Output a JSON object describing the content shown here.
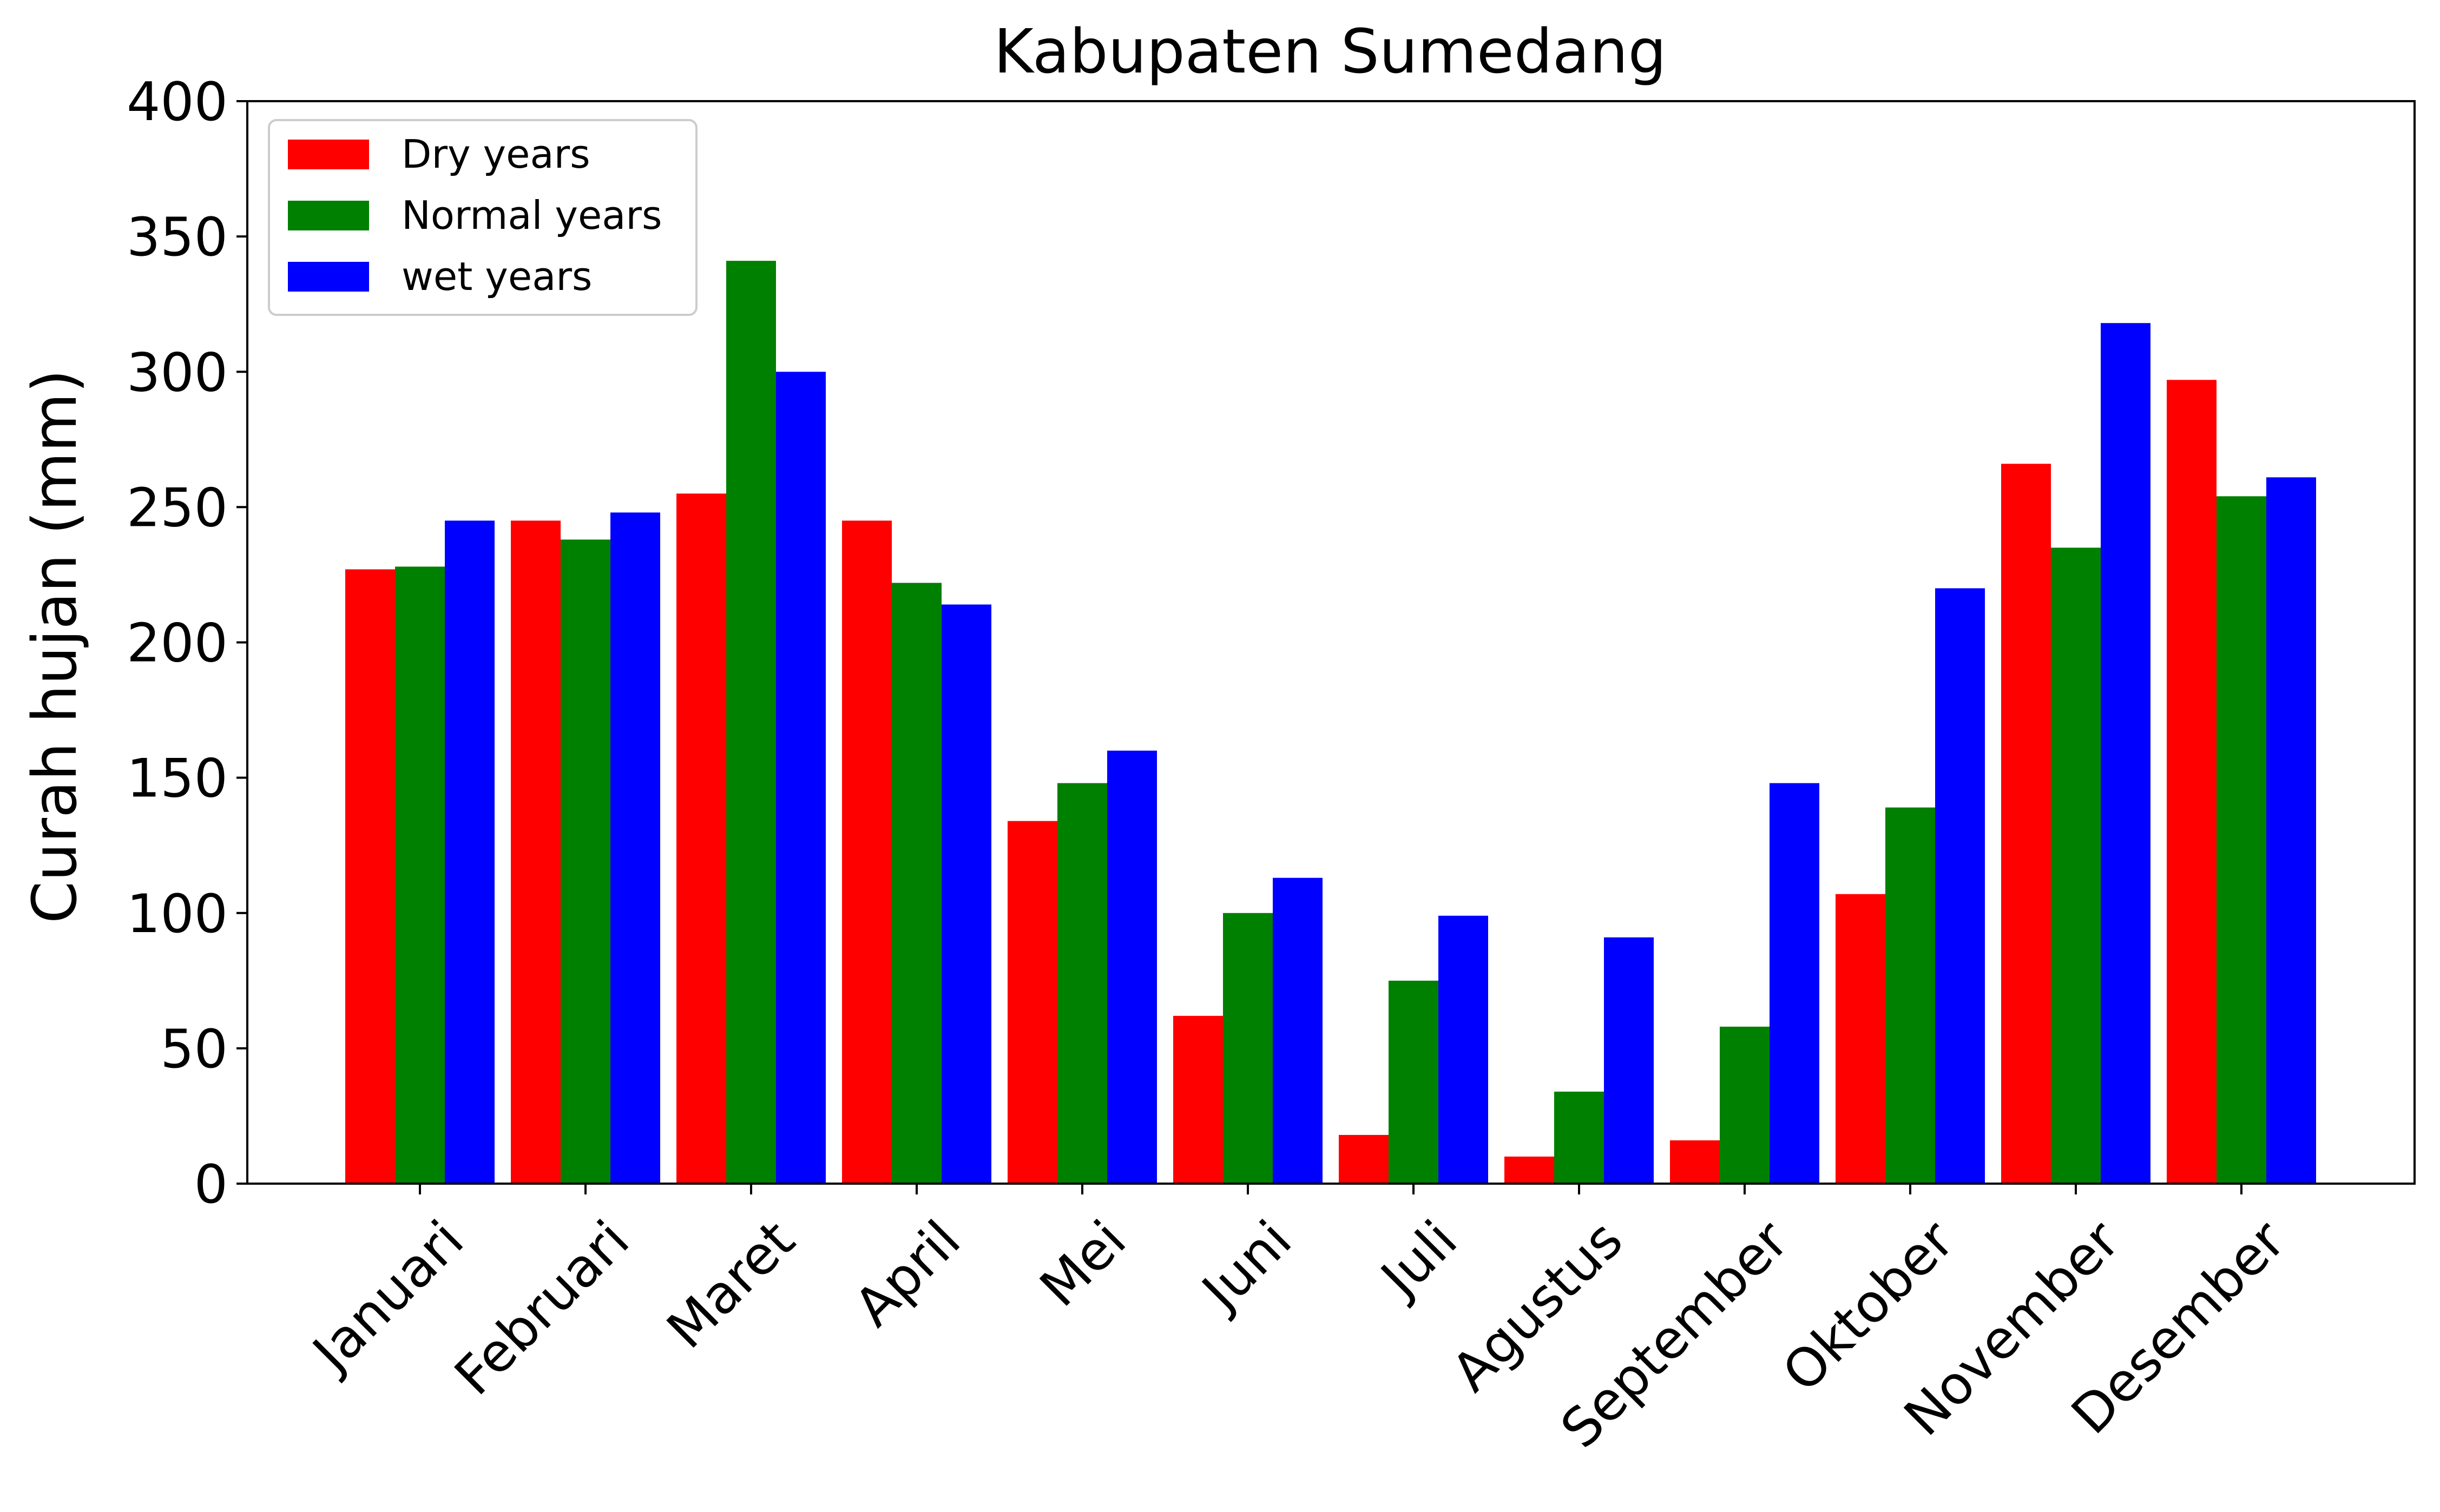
{
  "chart_data": {
    "type": "bar",
    "title": "Kabupaten Sumedang",
    "xlabel": "",
    "ylabel": "Curah hujan (mm)",
    "ylim": [
      0,
      400
    ],
    "yticks": [
      "0",
      "50",
      "100",
      "150",
      "200",
      "250",
      "300",
      "350",
      "400"
    ],
    "categories": [
      "Januari",
      "Februari",
      "Maret",
      "April",
      "Mei",
      "Juni",
      "Juli",
      "Agustus",
      "September",
      "Oktober",
      "November",
      "Desember"
    ],
    "series": [
      {
        "name": "Dry years",
        "color": "#ff0000",
        "values": [
          227,
          245,
          255,
          245,
          134,
          62,
          18,
          10,
          16,
          107,
          266,
          297
        ]
      },
      {
        "name": "Normal years",
        "color": "#008000",
        "values": [
          228,
          238,
          341,
          222,
          148,
          100,
          75,
          34,
          58,
          139,
          235,
          254
        ]
      },
      {
        "name": "wet years",
        "color": "#0000ff",
        "values": [
          245,
          248,
          300,
          214,
          160,
          113,
          99,
          91,
          148,
          220,
          318,
          261
        ]
      }
    ],
    "grid": false,
    "legend_position": "top-left"
  }
}
